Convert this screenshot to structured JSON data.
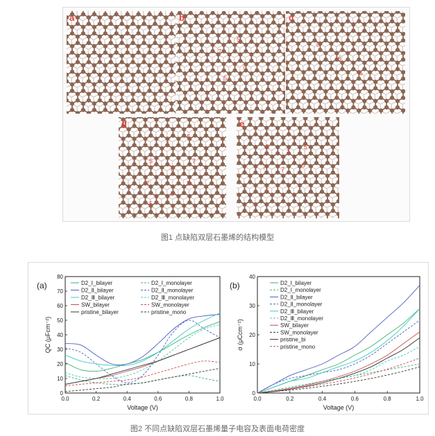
{
  "figure1": {
    "caption": "图1 点缺陷双层石墨烯的结构模型",
    "panels": [
      {
        "label": "a",
        "rings": []
      },
      {
        "label": "b",
        "rings": [
          "7",
          "5",
          "7",
          "5"
        ]
      },
      {
        "label": "c",
        "rings": [
          "5",
          "8",
          "5"
        ]
      },
      {
        "label": "d",
        "rings": [
          "7",
          "5",
          "5",
          "6",
          "7",
          "7",
          "5",
          "5",
          "7",
          "5"
        ]
      },
      {
        "label": "e",
        "rings": [
          "5",
          "7",
          "5",
          "7",
          "7",
          "5",
          "5",
          "7"
        ]
      }
    ],
    "colors": {
      "atom": "#8b6655",
      "bond": "#8b6655",
      "ring_label": "#e0413a",
      "shadow": "#d9cdc6"
    }
  },
  "figure2": {
    "caption": "图2 不同点缺陷双层石墨烯量子电容及表面电荷密度"
  },
  "chart_data": [
    {
      "type": "line",
      "panel_label": "(a)",
      "xlabel": "Voltage (V)",
      "ylabel": "QC (μFcm⁻²)",
      "xlim": [
        0.0,
        1.0
      ],
      "ylim": [
        0,
        80
      ],
      "x_ticks": [
        "0.0",
        "0.2",
        "0.4",
        "0.6",
        "0.8",
        "1.0"
      ],
      "y_ticks": [
        "0",
        "10",
        "20",
        "30",
        "40",
        "50",
        "60",
        "70",
        "80"
      ],
      "legend": [
        {
          "name": "D2_Ⅰ_bilayer",
          "color": "#3cb371",
          "dash": false
        },
        {
          "name": "D2_Ⅰ_monolayer",
          "color": "#3cb371",
          "dash": true
        },
        {
          "name": "D2_Ⅱ_bilayer",
          "color": "#4a5fc1",
          "dash": false
        },
        {
          "name": "D2_Ⅱ_monolayer",
          "color": "#4a5fc1",
          "dash": true
        },
        {
          "name": "D2_Ⅲ_bilayer",
          "color": "#40c9c0",
          "dash": false
        },
        {
          "name": "D2_Ⅲ_monolayer",
          "color": "#40c9c0",
          "dash": true
        },
        {
          "name": "SW_bilayer",
          "color": "#c0504d",
          "dash": false
        },
        {
          "name": "SW_monolayer",
          "color": "#c0504d",
          "dash": true
        },
        {
          "name": "pristine_bilayer",
          "color": "#333333",
          "dash": false
        },
        {
          "name": "pristine_mono",
          "color": "#333333",
          "dash": true
        }
      ],
      "series": [
        {
          "name": "D2_Ⅰ_bilayer",
          "color": "#3cb371",
          "dash": false,
          "x": [
            0,
            0.1,
            0.2,
            0.3,
            0.4,
            0.5,
            0.6,
            0.7,
            0.8,
            0.9,
            1.0
          ],
          "y": [
            21,
            16,
            15,
            17,
            20,
            23,
            28,
            34,
            40,
            45,
            49
          ]
        },
        {
          "name": "D2_Ⅰ_monolayer",
          "color": "#3cb371",
          "dash": true,
          "x": [
            0,
            0.1,
            0.2,
            0.3,
            0.4,
            0.5,
            0.6,
            0.7,
            0.8,
            0.9,
            1.0
          ],
          "y": [
            12,
            9,
            7,
            6,
            6,
            7,
            9,
            11,
            12,
            10,
            8
          ]
        },
        {
          "name": "D2_Ⅱ_bilayer",
          "color": "#4a5fc1",
          "dash": false,
          "x": [
            0,
            0.1,
            0.2,
            0.3,
            0.4,
            0.5,
            0.6,
            0.7,
            0.8,
            0.9,
            1.0
          ],
          "y": [
            34,
            33,
            26,
            20,
            20,
            25,
            34,
            44,
            51,
            53,
            54
          ]
        },
        {
          "name": "D2_Ⅱ_monolayer",
          "color": "#4a5fc1",
          "dash": true,
          "x": [
            0,
            0.1,
            0.2,
            0.3,
            0.4,
            0.5,
            0.6,
            0.7,
            0.8,
            0.9,
            1.0
          ],
          "y": [
            31,
            28,
            20,
            12,
            7,
            12,
            26,
            42,
            50,
            44,
            38
          ]
        },
        {
          "name": "D2_Ⅲ_bilayer",
          "color": "#40c9c0",
          "dash": false,
          "x": [
            0,
            0.1,
            0.2,
            0.3,
            0.4,
            0.5,
            0.6,
            0.7,
            0.8,
            0.9,
            1.0
          ],
          "y": [
            26,
            22,
            20,
            19,
            19,
            22,
            28,
            36,
            44,
            50,
            55
          ]
        },
        {
          "name": "D2_Ⅲ_monolayer",
          "color": "#40c9c0",
          "dash": true,
          "x": [
            0,
            0.1,
            0.2,
            0.3,
            0.4,
            0.5,
            0.6,
            0.7,
            0.8,
            0.9,
            1.0
          ],
          "y": [
            14,
            11,
            10,
            10,
            12,
            16,
            22,
            30,
            38,
            44,
            47
          ]
        },
        {
          "name": "SW_bilayer",
          "color": "#c0504d",
          "dash": false,
          "x": [
            0,
            0.1,
            0.2,
            0.3,
            0.4,
            0.5,
            0.6,
            0.7,
            0.8,
            0.9,
            1.0
          ],
          "y": [
            6,
            8,
            10,
            12,
            15,
            18,
            22,
            26,
            30,
            34,
            38
          ]
        },
        {
          "name": "SW_monolayer",
          "color": "#c0504d",
          "dash": true,
          "x": [
            0,
            0.1,
            0.2,
            0.3,
            0.4,
            0.5,
            0.6,
            0.7,
            0.8,
            0.9,
            1.0
          ],
          "y": [
            5,
            6,
            7,
            8,
            9,
            11,
            14,
            17,
            20,
            22,
            21
          ]
        },
        {
          "name": "pristine_bilayer",
          "color": "#333333",
          "dash": false,
          "x": [
            0,
            0.1,
            0.2,
            0.3,
            0.4,
            0.5,
            0.6,
            0.7,
            0.8,
            0.9,
            1.0
          ],
          "y": [
            6,
            8,
            10,
            13,
            16,
            19,
            22,
            26,
            30,
            34,
            38
          ]
        },
        {
          "name": "pristine_mono",
          "color": "#333333",
          "dash": true,
          "x": [
            0,
            0.1,
            0.2,
            0.3,
            0.4,
            0.5,
            0.6,
            0.7,
            0.8,
            0.9,
            1.0
          ],
          "y": [
            1,
            2,
            3,
            4,
            6,
            7,
            9,
            11,
            13,
            15,
            17
          ]
        }
      ]
    },
    {
      "type": "line",
      "panel_label": "(b)",
      "xlabel": "Voltage (V)",
      "ylabel": "σ (μCcm⁻²)",
      "xlim": [
        0.0,
        1.0
      ],
      "ylim": [
        0,
        40
      ],
      "x_ticks": [
        "0.0",
        "0.2",
        "0.4",
        "0.6",
        "0.8",
        "1.0"
      ],
      "y_ticks": [
        "0",
        "10",
        "20",
        "30",
        "40"
      ],
      "legend": [
        {
          "name": "D2_Ⅰ_bilayer",
          "color": "#3cb371",
          "dash": false
        },
        {
          "name": "D2_Ⅰ_monolayer",
          "color": "#3cb371",
          "dash": true
        },
        {
          "name": "D2_Ⅱ_bilayer",
          "color": "#4a5fc1",
          "dash": false
        },
        {
          "name": "D2_Ⅱ_monolayer",
          "color": "#4a5fc1",
          "dash": true
        },
        {
          "name": "D2_Ⅲ_bilayer",
          "color": "#40c9c0",
          "dash": false
        },
        {
          "name": "D2_Ⅲ_monolayer",
          "color": "#40c9c0",
          "dash": true
        },
        {
          "name": "SW_bilayer",
          "color": "#c0504d",
          "dash": false
        },
        {
          "name": "SW_monolayer",
          "color": "#333333",
          "dash": true
        },
        {
          "name": "pristine_bi",
          "color": "#333333",
          "dash": false
        },
        {
          "name": "pristine_mono",
          "color": "#c0504d",
          "dash": true
        }
      ],
      "series": [
        {
          "name": "D2_Ⅰ_bilayer",
          "color": "#3cb371",
          "dash": false,
          "x": [
            0,
            0.1,
            0.2,
            0.3,
            0.4,
            0.5,
            0.6,
            0.7,
            0.8,
            0.9,
            1.0
          ],
          "y": [
            0,
            2,
            4,
            6,
            8,
            10,
            13,
            16,
            20,
            24,
            29
          ]
        },
        {
          "name": "D2_Ⅰ_monolayer",
          "color": "#3cb371",
          "dash": true,
          "x": [
            0,
            0.1,
            0.2,
            0.3,
            0.4,
            0.5,
            0.6,
            0.7,
            0.8,
            0.9,
            1.0
          ],
          "y": [
            0,
            1,
            2,
            3,
            4,
            5,
            6,
            7,
            8,
            9,
            10
          ]
        },
        {
          "name": "D2_Ⅱ_bilayer",
          "color": "#4a5fc1",
          "dash": false,
          "x": [
            0,
            0.1,
            0.2,
            0.3,
            0.4,
            0.5,
            0.6,
            0.7,
            0.8,
            0.9,
            1.0
          ],
          "y": [
            0,
            3,
            6,
            8,
            10,
            13,
            16,
            21,
            26,
            31,
            37
          ]
        },
        {
          "name": "D2_Ⅱ_monolayer",
          "color": "#4a5fc1",
          "dash": true,
          "x": [
            0,
            0.1,
            0.2,
            0.3,
            0.4,
            0.5,
            0.6,
            0.7,
            0.8,
            0.9,
            1.0
          ],
          "y": [
            0,
            3,
            5,
            6,
            7,
            8,
            10,
            13,
            17,
            21,
            25
          ]
        },
        {
          "name": "D2_Ⅲ_bilayer",
          "color": "#40c9c0",
          "dash": false,
          "x": [
            0,
            0.1,
            0.2,
            0.3,
            0.4,
            0.5,
            0.6,
            0.7,
            0.8,
            0.9,
            1.0
          ],
          "y": [
            0,
            2,
            4,
            5,
            7,
            9,
            11,
            14,
            18,
            23,
            29
          ]
        },
        {
          "name": "D2_Ⅲ_monolayer",
          "color": "#40c9c0",
          "dash": true,
          "x": [
            0,
            0.1,
            0.2,
            0.3,
            0.4,
            0.5,
            0.6,
            0.7,
            0.8,
            0.9,
            1.0
          ],
          "y": [
            0,
            1,
            2,
            3,
            4,
            5,
            6,
            8,
            11,
            13,
            16
          ]
        },
        {
          "name": "SW_bilayer",
          "color": "#c0504d",
          "dash": false,
          "x": [
            0,
            0.1,
            0.2,
            0.3,
            0.4,
            0.5,
            0.6,
            0.7,
            0.8,
            0.9,
            1.0
          ],
          "y": [
            0,
            0.7,
            1.6,
            2.7,
            4,
            5.6,
            7.5,
            10,
            13,
            17,
            21
          ]
        },
        {
          "name": "SW_monolayer",
          "color": "#333333",
          "dash": true,
          "x": [
            0,
            0.1,
            0.2,
            0.3,
            0.4,
            0.5,
            0.6,
            0.7,
            0.8,
            0.9,
            1.0
          ],
          "y": [
            0,
            0.5,
            1,
            1.6,
            2.3,
            3.1,
            4,
            5,
            6.2,
            7.5,
            9
          ]
        },
        {
          "name": "pristine_bi",
          "color": "#333333",
          "dash": false,
          "x": [
            0,
            0.1,
            0.2,
            0.3,
            0.4,
            0.5,
            0.6,
            0.7,
            0.8,
            0.9,
            1.0
          ],
          "y": [
            0,
            0.5,
            1.3,
            2.3,
            3.5,
            5,
            6.8,
            9,
            12,
            15,
            19
          ]
        },
        {
          "name": "pristine_mono",
          "color": "#c0504d",
          "dash": true,
          "x": [
            0,
            0.1,
            0.2,
            0.3,
            0.4,
            0.5,
            0.6,
            0.7,
            0.8,
            0.9,
            1.0
          ],
          "y": [
            0,
            0.6,
            1.3,
            2.1,
            3,
            4,
            5.2,
            6.6,
            8.2,
            10,
            12
          ]
        }
      ]
    }
  ]
}
